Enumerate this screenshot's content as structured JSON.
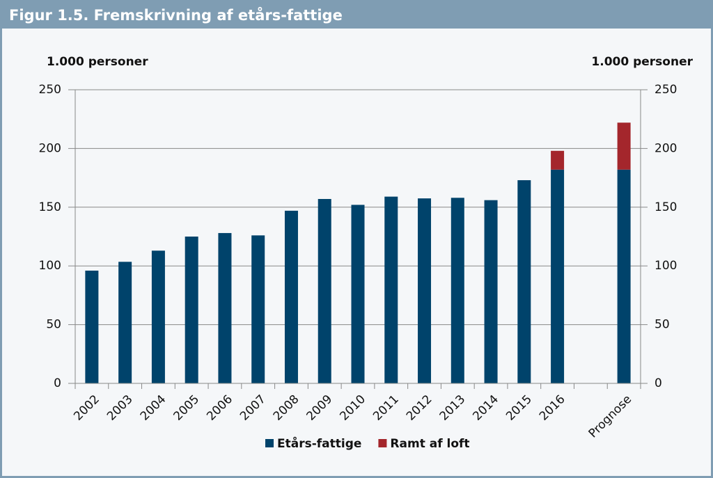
{
  "chart_data": {
    "type": "stacked_bar",
    "title": "Figur 1.5. Fremskrivning af etårs-fattige",
    "y_label": "1.000 personer",
    "y2_label": "1.000 personer",
    "categories": [
      "2002",
      "2003",
      "2004",
      "2005",
      "2006",
      "2007",
      "2008",
      "2009",
      "2010",
      "2011",
      "2012",
      "2013",
      "2014",
      "2015",
      "2016",
      null,
      "Prognose"
    ],
    "series": [
      {
        "name": "Etårs-fattige",
        "color": "#00436b",
        "values": [
          96,
          103.5,
          113,
          125,
          128,
          126,
          147,
          157,
          152,
          159,
          157.5,
          158,
          156,
          173,
          182,
          null,
          182
        ]
      },
      {
        "name": "Ramt af loft",
        "color": "#a4262c",
        "values": [
          null,
          null,
          null,
          null,
          null,
          null,
          null,
          null,
          null,
          null,
          null,
          null,
          null,
          null,
          16,
          null,
          40
        ]
      }
    ],
    "ylim": [
      0,
      250
    ],
    "yticks": [
      0,
      50,
      100,
      150,
      200,
      250
    ],
    "y2lim": [
      0,
      250
    ],
    "y2ticks": [
      0,
      50,
      100,
      150,
      200,
      250
    ],
    "grid": true
  }
}
